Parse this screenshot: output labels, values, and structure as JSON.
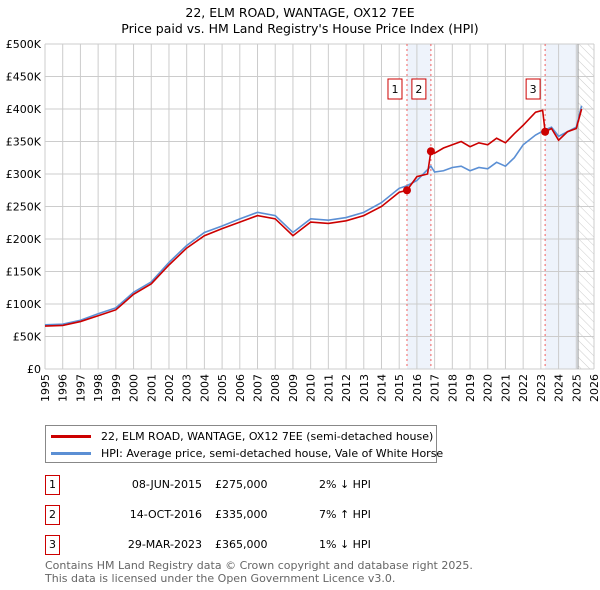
{
  "title": "22, ELM ROAD, WANTAGE, OX12 7EE",
  "subtitle": "Price paid vs. HM Land Registry's House Price Index (HPI)",
  "chart_data": {
    "type": "line",
    "title": "22, ELM ROAD, WANTAGE, OX12 7EE — Price paid vs. HM Land Registry's House Price Index (HPI)",
    "xlim": [
      1995,
      2026
    ],
    "ylim": [
      0,
      500000
    ],
    "x_ticks": [
      "1995",
      "1996",
      "1997",
      "1998",
      "1999",
      "2000",
      "2001",
      "2002",
      "2003",
      "2004",
      "2005",
      "2006",
      "2007",
      "2008",
      "2009",
      "2010",
      "2011",
      "2012",
      "2013",
      "2014",
      "2015",
      "2016",
      "2017",
      "2018",
      "2019",
      "2020",
      "2021",
      "2022",
      "2023",
      "2024",
      "2025",
      "2026"
    ],
    "y_ticks": [
      {
        "v": 0,
        "l": "£0"
      },
      {
        "v": 50000,
        "l": "£50K"
      },
      {
        "v": 100000,
        "l": "£100K"
      },
      {
        "v": 150000,
        "l": "£150K"
      },
      {
        "v": 200000,
        "l": "£200K"
      },
      {
        "v": 250000,
        "l": "£250K"
      },
      {
        "v": 300000,
        "l": "£300K"
      },
      {
        "v": 350000,
        "l": "£350K"
      },
      {
        "v": 400000,
        "l": "£400K"
      },
      {
        "v": 450000,
        "l": "£450K"
      },
      {
        "v": 500000,
        "l": "£500K"
      }
    ],
    "grid": true,
    "series": [
      {
        "name": "22, ELM ROAD, WANTAGE, OX12 7EE (semi-detached house)",
        "color": "#cc0000",
        "points": [
          [
            1995,
            66000
          ],
          [
            1996,
            67000
          ],
          [
            1997,
            73000
          ],
          [
            1998,
            82000
          ],
          [
            1999,
            91000
          ],
          [
            2000,
            115000
          ],
          [
            2001,
            131000
          ],
          [
            2002,
            160000
          ],
          [
            2003,
            186000
          ],
          [
            2004,
            205000
          ],
          [
            2005,
            216000
          ],
          [
            2006,
            226000
          ],
          [
            2007,
            236000
          ],
          [
            2008,
            231000
          ],
          [
            2009,
            205000
          ],
          [
            2010,
            226000
          ],
          [
            2011,
            224000
          ],
          [
            2012,
            228000
          ],
          [
            2013,
            236000
          ],
          [
            2014,
            250000
          ],
          [
            2015,
            272000
          ],
          [
            2015.44,
            275000
          ],
          [
            2016,
            296000
          ],
          [
            2016.6,
            300000
          ],
          [
            2016.79,
            335000
          ],
          [
            2017,
            332000
          ],
          [
            2017.5,
            340000
          ],
          [
            2018,
            345000
          ],
          [
            2018.5,
            350000
          ],
          [
            2019,
            342000
          ],
          [
            2019.5,
            348000
          ],
          [
            2020,
            345000
          ],
          [
            2020.5,
            355000
          ],
          [
            2021,
            348000
          ],
          [
            2021.5,
            362000
          ],
          [
            2022,
            375000
          ],
          [
            2022.7,
            395000
          ],
          [
            2023.1,
            398000
          ],
          [
            2023.24,
            365000
          ],
          [
            2023.6,
            370000
          ],
          [
            2024,
            352000
          ],
          [
            2024.5,
            365000
          ],
          [
            2025,
            370000
          ],
          [
            2025.3,
            400000
          ]
        ]
      },
      {
        "name": "HPI: Average price, semi-detached house, Vale of White Horse",
        "color": "#5b8fd4",
        "points": [
          [
            1995,
            68000
          ],
          [
            1996,
            69000
          ],
          [
            1997,
            75000
          ],
          [
            1998,
            85000
          ],
          [
            1999,
            94000
          ],
          [
            2000,
            118000
          ],
          [
            2001,
            134000
          ],
          [
            2002,
            164000
          ],
          [
            2003,
            190000
          ],
          [
            2004,
            210000
          ],
          [
            2005,
            220000
          ],
          [
            2006,
            231000
          ],
          [
            2007,
            241000
          ],
          [
            2008,
            236000
          ],
          [
            2009,
            210000
          ],
          [
            2010,
            231000
          ],
          [
            2011,
            229000
          ],
          [
            2012,
            233000
          ],
          [
            2013,
            241000
          ],
          [
            2014,
            256000
          ],
          [
            2015,
            278000
          ],
          [
            2015.44,
            282000
          ],
          [
            2016,
            290000
          ],
          [
            2016.79,
            312000
          ],
          [
            2017,
            303000
          ],
          [
            2017.5,
            305000
          ],
          [
            2018,
            310000
          ],
          [
            2018.5,
            312000
          ],
          [
            2019,
            305000
          ],
          [
            2019.5,
            310000
          ],
          [
            2020,
            308000
          ],
          [
            2020.5,
            318000
          ],
          [
            2021,
            312000
          ],
          [
            2021.5,
            325000
          ],
          [
            2022,
            345000
          ],
          [
            2022.7,
            360000
          ],
          [
            2023.24,
            368000
          ],
          [
            2023.6,
            372000
          ],
          [
            2024,
            358000
          ],
          [
            2024.5,
            365000
          ],
          [
            2025,
            372000
          ],
          [
            2025.3,
            405000
          ]
        ]
      }
    ],
    "sales": [
      {
        "n": "1",
        "x": 2015.44,
        "v": 275000
      },
      {
        "n": "2",
        "x": 2016.79,
        "v": 335000
      },
      {
        "n": "3",
        "x": 2023.24,
        "v": 365000
      }
    ],
    "shaded": [
      [
        2015.44,
        2016.79
      ],
      [
        2023.24,
        2025.1
      ]
    ],
    "hatch_from": 2025.1,
    "legend_placement": "below"
  },
  "legend": {
    "property": "22, ELM ROAD, WANTAGE, OX12 7EE (semi-detached house)",
    "hpi": "HPI: Average price, semi-detached house, Vale of White Horse"
  },
  "transactions": [
    {
      "n": "1",
      "date": "08-JUN-2015",
      "price": "£275,000",
      "hpi": "2% ↓ HPI"
    },
    {
      "n": "2",
      "date": "14-OCT-2016",
      "price": "£335,000",
      "hpi": "7% ↑ HPI"
    },
    {
      "n": "3",
      "date": "29-MAR-2023",
      "price": "£365,000",
      "hpi": "1% ↓ HPI"
    }
  ],
  "footer": {
    "line1": "Contains HM Land Registry data © Crown copyright and database right 2025.",
    "line2": "This data is licensed under the Open Government Licence v3.0."
  }
}
